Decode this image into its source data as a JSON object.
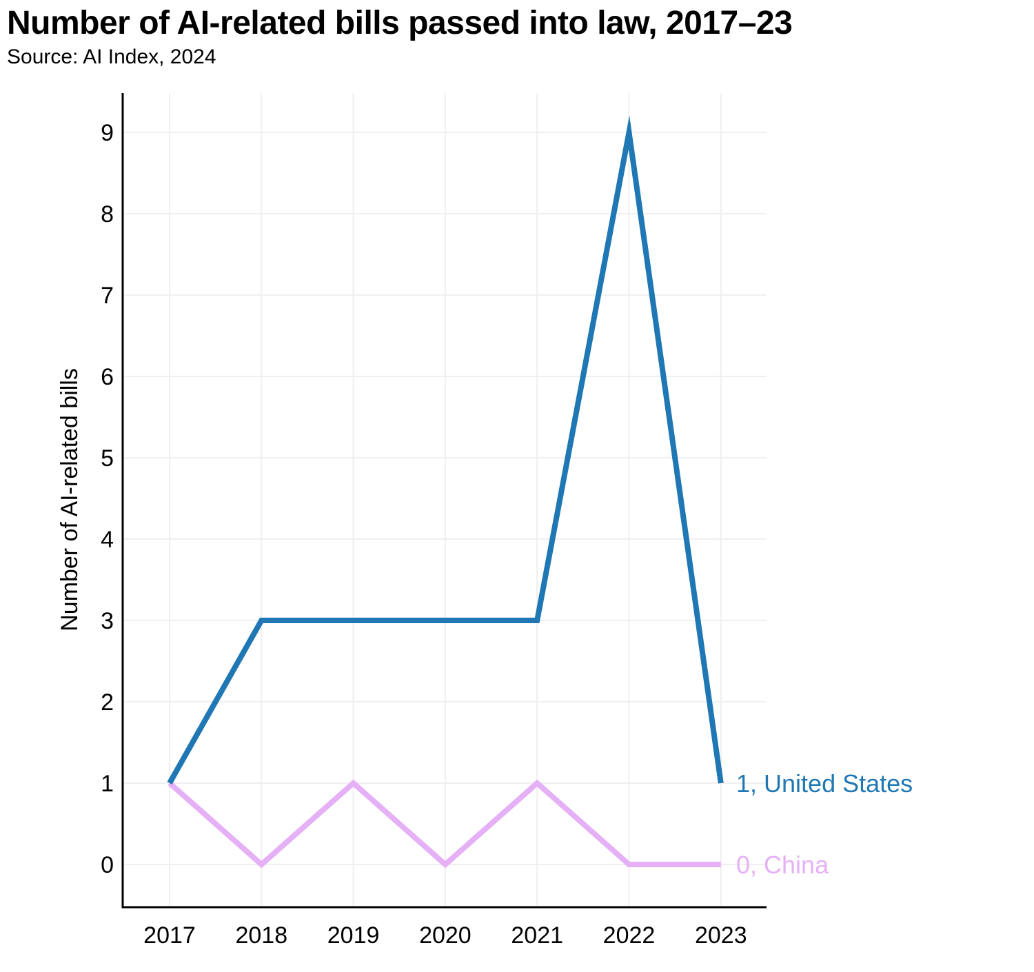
{
  "header": {
    "title": "Number of AI-related bills passed into law, 2017–23",
    "subtitle": "Source: AI Index, 2024"
  },
  "chart_data": {
    "type": "line",
    "title": "Number of AI-related bills passed into law, 2017–23",
    "subtitle": "Source: AI Index, 2024",
    "xlabel": "",
    "ylabel": "Number of AI-related bills",
    "x": [
      "2017",
      "2018",
      "2019",
      "2020",
      "2021",
      "2022",
      "2023"
    ],
    "yticks": [
      0,
      1,
      2,
      3,
      4,
      5,
      6,
      7,
      8,
      9
    ],
    "ylim": [
      -0.5,
      9.5
    ],
    "grid": true,
    "legend": "end-of-line labels",
    "series": [
      {
        "name": "United States",
        "values": [
          1,
          3,
          3,
          3,
          3,
          9,
          1
        ],
        "color": "#1f77b4",
        "end_label": "1, United States"
      },
      {
        "name": "China",
        "values": [
          1,
          0,
          1,
          0,
          1,
          0,
          0
        ],
        "color": "#e6b0f7",
        "end_label": "0, China"
      }
    ]
  }
}
